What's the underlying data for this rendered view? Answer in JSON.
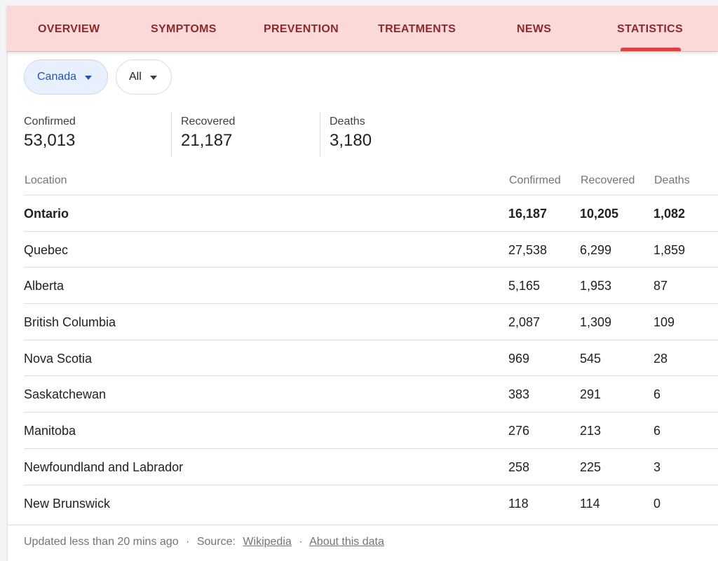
{
  "tabs": [
    {
      "label": "OVERVIEW"
    },
    {
      "label": "SYMPTOMS"
    },
    {
      "label": "PREVENTION"
    },
    {
      "label": "TREATMENTS"
    },
    {
      "label": "NEWS"
    },
    {
      "label": "STATISTICS",
      "active": true
    }
  ],
  "filters": {
    "country": "Canada",
    "scope": "All"
  },
  "summary": {
    "confirmed_label": "Confirmed",
    "confirmed_value": "53,013",
    "recovered_label": "Recovered",
    "recovered_value": "21,187",
    "deaths_label": "Deaths",
    "deaths_value": "3,180"
  },
  "table": {
    "headers": {
      "location": "Location",
      "confirmed": "Confirmed",
      "recovered": "Recovered",
      "deaths": "Deaths"
    },
    "rows": [
      {
        "location": "Ontario",
        "confirmed": "16,187",
        "recovered": "10,205",
        "deaths": "1,082"
      },
      {
        "location": "Quebec",
        "confirmed": "27,538",
        "recovered": "6,299",
        "deaths": "1,859"
      },
      {
        "location": "Alberta",
        "confirmed": "5,165",
        "recovered": "1,953",
        "deaths": "87"
      },
      {
        "location": "British Columbia",
        "confirmed": "2,087",
        "recovered": "1,309",
        "deaths": "109"
      },
      {
        "location": "Nova Scotia",
        "confirmed": "969",
        "recovered": "545",
        "deaths": "28"
      },
      {
        "location": "Saskatchewan",
        "confirmed": "383",
        "recovered": "291",
        "deaths": "6"
      },
      {
        "location": "Manitoba",
        "confirmed": "276",
        "recovered": "213",
        "deaths": "6"
      },
      {
        "location": "Newfoundland and Labrador",
        "confirmed": "258",
        "recovered": "225",
        "deaths": "3"
      },
      {
        "location": "New Brunswick",
        "confirmed": "118",
        "recovered": "114",
        "deaths": "0"
      }
    ]
  },
  "footer": {
    "updated": "Updated less than 20 mins ago",
    "separator": "·",
    "source_label": "Source:",
    "source_link": "Wikipedia",
    "about_link": "About this data"
  },
  "colors": {
    "tabbar_bg": "#fcd9d9",
    "tab_text": "#8a2a2a",
    "active_indicator": "#e0403f",
    "chip_active_bg": "#e8f0fe",
    "chip_active_text": "#1a56b8"
  }
}
